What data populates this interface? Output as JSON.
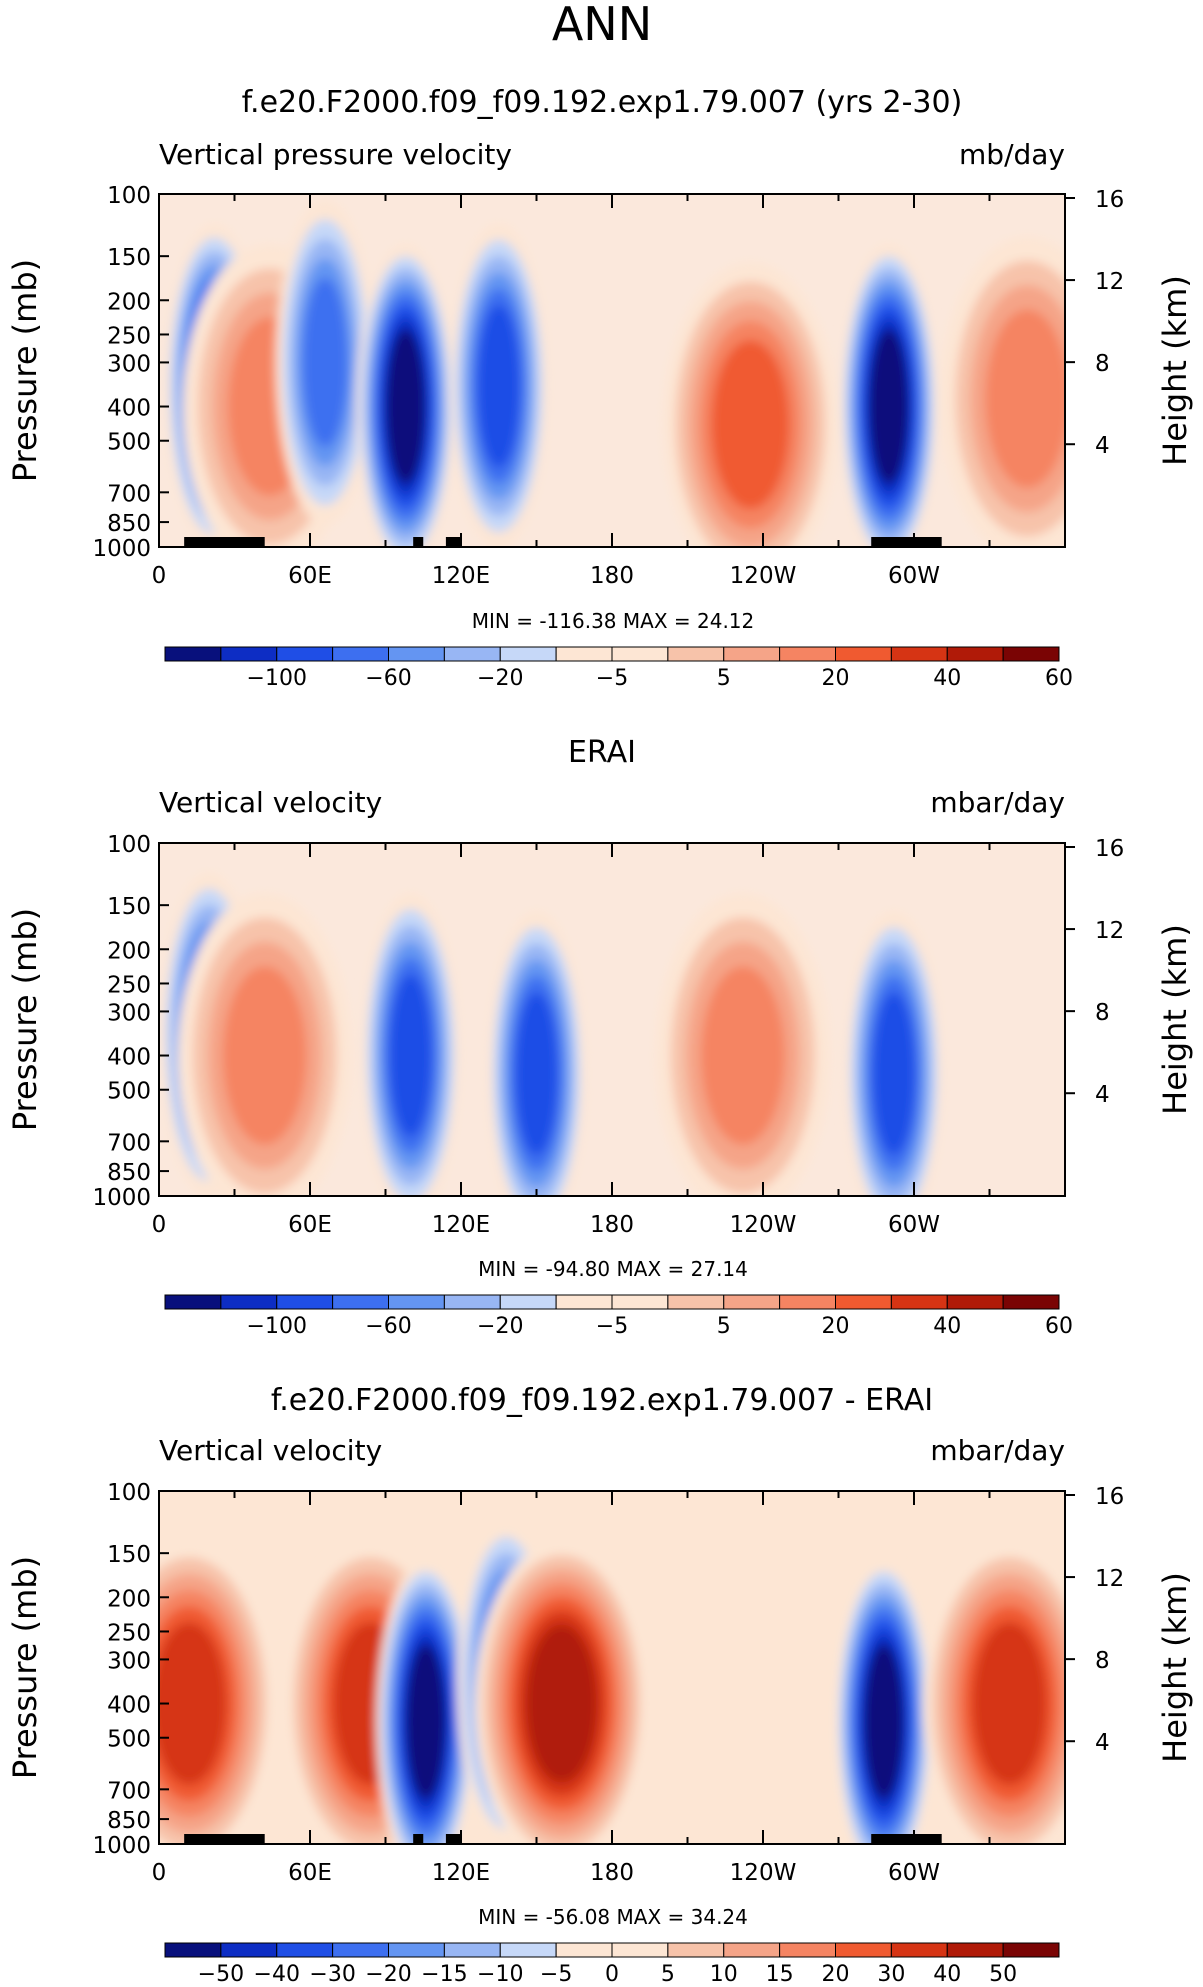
{
  "page_title": "ANN",
  "chart_data": [
    {
      "type": "heatmap",
      "title": "f.e20.F2000.f09_f09.192.exp1.79.007 (yrs 2-30)",
      "left_label": "Vertical pressure velocity",
      "units": "mb/day",
      "ylabel": "Pressure (mb)",
      "y2label": "Height (km)",
      "y_ticks": [
        100,
        150,
        200,
        250,
        300,
        400,
        500,
        700,
        850,
        1000
      ],
      "y2_ticks": [
        16,
        12,
        8,
        4
      ],
      "x_ticks": [
        "0",
        "60E",
        "120E",
        "180",
        "120W",
        "60W"
      ],
      "stats": "MIN = -116.38   MAX =   24.12",
      "colorbar_labels": [
        "-100",
        "-60",
        "-20",
        "-5",
        "5",
        "20",
        "40",
        "60"
      ],
      "contour_levels": [
        -100,
        -80,
        -60,
        -40,
        -20,
        -10,
        -5,
        0,
        5,
        10,
        20,
        30,
        40,
        50,
        60
      ],
      "topography_longitudes": [
        [
          10,
          42
        ],
        [
          101,
          105
        ],
        [
          114,
          120
        ],
        [
          283,
          311
        ]
      ],
      "features": [
        {
          "lon": 22,
          "p": 350,
          "value": -80
        },
        {
          "lon": 44,
          "p": 400,
          "value": 20
        },
        {
          "lon": 66,
          "p": 300,
          "value": -40
        },
        {
          "lon": 98,
          "p": 400,
          "value": -100
        },
        {
          "lon": 135,
          "p": 350,
          "value": -60
        },
        {
          "lon": 235,
          "p": 450,
          "value": 24
        },
        {
          "lon": 290,
          "p": 400,
          "value": -100
        },
        {
          "lon": 345,
          "p": 380,
          "value": 20
        }
      ]
    },
    {
      "type": "heatmap",
      "title": "ERAI",
      "left_label": "Vertical velocity",
      "units": "mbar/day",
      "ylabel": "Pressure (mb)",
      "y2label": "Height (km)",
      "y_ticks": [
        100,
        150,
        200,
        250,
        300,
        400,
        500,
        700,
        850,
        1000
      ],
      "y2_ticks": [
        16,
        12,
        8,
        4
      ],
      "x_ticks": [
        "0",
        "60E",
        "120E",
        "180",
        "120W",
        "60W"
      ],
      "stats": "MIN =  -94.80   MAX =   27.14",
      "colorbar_labels": [
        "-100",
        "-60",
        "-20",
        "-5",
        "5",
        "20",
        "40",
        "60"
      ],
      "contour_levels": [
        -100,
        -80,
        -60,
        -40,
        -20,
        -10,
        -5,
        0,
        5,
        10,
        20,
        30,
        40,
        50,
        60
      ],
      "topography_longitudes": [],
      "features": [
        {
          "lon": 20,
          "p": 350,
          "value": -60
        },
        {
          "lon": 42,
          "p": 400,
          "value": 20
        },
        {
          "lon": 100,
          "p": 400,
          "value": -60
        },
        {
          "lon": 150,
          "p": 450,
          "value": -60
        },
        {
          "lon": 232,
          "p": 400,
          "value": 20
        },
        {
          "lon": 292,
          "p": 450,
          "value": -60
        }
      ]
    },
    {
      "type": "heatmap",
      "title": "f.e20.F2000.f09_f09.192.exp1.79.007 - ERAI",
      "left_label": "Vertical velocity",
      "units": "mbar/day",
      "ylabel": "Pressure (mb)",
      "y2label": "Height (km)",
      "y_ticks": [
        100,
        150,
        200,
        250,
        300,
        400,
        500,
        700,
        850,
        1000
      ],
      "y2_ticks": [
        16,
        12,
        8,
        4
      ],
      "x_ticks": [
        "0",
        "60E",
        "120E",
        "180",
        "120W",
        "60W"
      ],
      "stats": "MIN =  -56.08   MAX =   34.24",
      "colorbar_labels": [
        "-50",
        "-40",
        "-30",
        "-20",
        "-15",
        "-10",
        "-5",
        "0",
        "5",
        "10",
        "15",
        "20",
        "30",
        "40",
        "50"
      ],
      "contour_levels": [
        -50,
        -40,
        -30,
        -20,
        -15,
        -10,
        -5,
        0,
        5,
        10,
        15,
        20,
        30,
        40,
        50
      ],
      "topography_longitudes": [
        [
          10,
          42
        ],
        [
          101,
          105
        ],
        [
          114,
          120
        ],
        [
          283,
          311
        ]
      ],
      "features": [
        {
          "lon": 12,
          "p": 400,
          "value": 30
        },
        {
          "lon": 84,
          "p": 400,
          "value": 30
        },
        {
          "lon": 106,
          "p": 450,
          "value": -50
        },
        {
          "lon": 138,
          "p": 350,
          "value": -30
        },
        {
          "lon": 160,
          "p": 400,
          "value": 34
        },
        {
          "lon": 288,
          "p": 450,
          "value": -50
        },
        {
          "lon": 338,
          "p": 400,
          "value": 30
        }
      ]
    }
  ]
}
